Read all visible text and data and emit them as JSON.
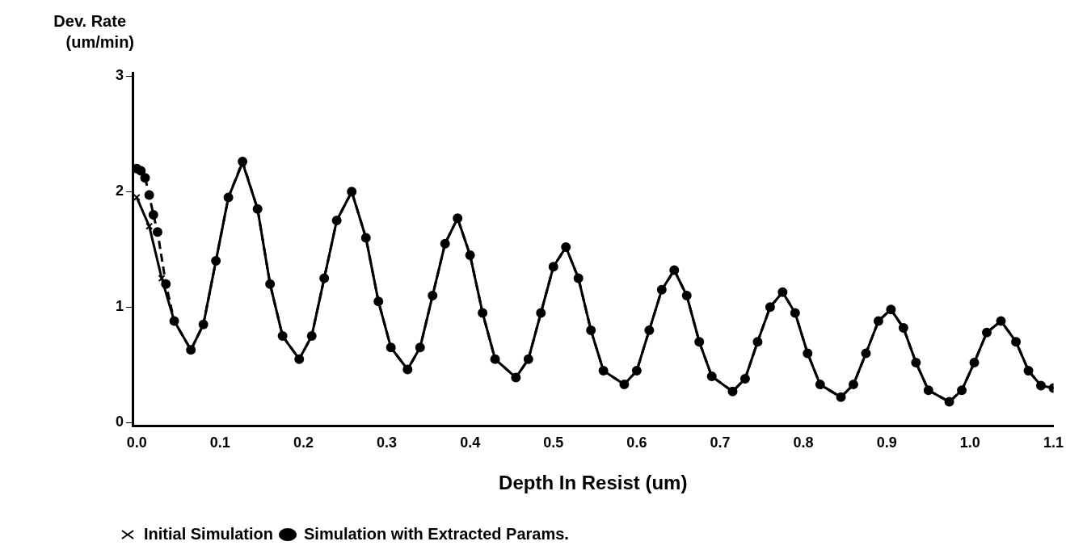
{
  "chart_data": {
    "type": "line",
    "xlabel": "Depth In Resist (um)",
    "ylabel": "Dev. Rate (um/min)",
    "xlim": [
      -0.005,
      1.1
    ],
    "xticks": [
      {
        "value": 0,
        "label": "0.0"
      },
      0.1,
      0.2,
      0.3,
      0.4,
      0.5,
      0.6,
      0.7,
      0.8,
      0.9,
      {
        "value": 1,
        "label": "1.0"
      },
      1.1
    ],
    "ylim": [
      -0.03,
      3.03
    ],
    "yticks": [
      0,
      1,
      2,
      3
    ],
    "grid": false,
    "legend": "bottom",
    "series": [
      {
        "name": "Initial Simulation",
        "color": "#000000",
        "marker": "cross",
        "line_style": "solid",
        "x": [
          0,
          0.015,
          0.03,
          0.045,
          0.065,
          0.08,
          0.095,
          0.11,
          0.127,
          0.145,
          0.16,
          0.175,
          0.195,
          0.21,
          0.225,
          0.24,
          0.258,
          0.275,
          0.29,
          0.305,
          0.325,
          0.34,
          0.355,
          0.37,
          0.385,
          0.4,
          0.415,
          0.43,
          0.455,
          0.47,
          0.485,
          0.5,
          0.515,
          0.53,
          0.545,
          0.56,
          0.585,
          0.6,
          0.615,
          0.63,
          0.645,
          0.66,
          0.675,
          0.69,
          0.715,
          0.73,
          0.745,
          0.76,
          0.775,
          0.79,
          0.805,
          0.82,
          0.845,
          0.86,
          0.875,
          0.89,
          0.905,
          0.92,
          0.935,
          0.95,
          0.975,
          0.99,
          1.005,
          1.02,
          1.037,
          1.055,
          1.07,
          1.085,
          1.1
        ],
        "values": [
          1.95,
          1.7,
          1.25,
          0.88,
          0.63,
          0.85,
          1.4,
          1.95,
          2.25,
          1.85,
          1.2,
          0.75,
          0.55,
          0.75,
          1.25,
          1.75,
          2.0,
          1.6,
          1.05,
          0.65,
          0.46,
          0.65,
          1.1,
          1.55,
          1.77,
          1.45,
          0.95,
          0.55,
          0.39,
          0.55,
          0.95,
          1.35,
          1.52,
          1.25,
          0.8,
          0.45,
          0.33,
          0.45,
          0.8,
          1.15,
          1.32,
          1.1,
          0.7,
          0.4,
          0.27,
          0.38,
          0.7,
          1.0,
          1.13,
          0.95,
          0.6,
          0.33,
          0.22,
          0.33,
          0.6,
          0.88,
          0.98,
          0.82,
          0.52,
          0.28,
          0.18,
          0.28,
          0.52,
          0.78,
          0.88,
          0.7,
          0.45,
          0.32,
          0.3
        ]
      },
      {
        "name": "Simulation with Extracted Params.",
        "color": "#000000",
        "marker": "circle",
        "line_style": "dashed",
        "x": [
          0,
          0.005,
          0.01,
          0.015,
          0.02,
          0.025,
          0.035,
          0.045,
          0.065,
          0.08,
          0.095,
          0.11,
          0.127,
          0.145,
          0.16,
          0.175,
          0.195,
          0.21,
          0.225,
          0.24,
          0.258,
          0.275,
          0.29,
          0.305,
          0.325,
          0.34,
          0.355,
          0.37,
          0.385,
          0.4,
          0.415,
          0.43,
          0.455,
          0.47,
          0.485,
          0.5,
          0.515,
          0.53,
          0.545,
          0.56,
          0.585,
          0.6,
          0.615,
          0.63,
          0.645,
          0.66,
          0.675,
          0.69,
          0.715,
          0.73,
          0.745,
          0.76,
          0.775,
          0.79,
          0.805,
          0.82,
          0.845,
          0.86,
          0.875,
          0.89,
          0.905,
          0.92,
          0.935,
          0.95,
          0.975,
          0.99,
          1.005,
          1.02,
          1.037,
          1.055,
          1.07,
          1.085,
          1.1
        ],
        "values": [
          2.2,
          2.18,
          2.12,
          1.97,
          1.8,
          1.65,
          1.2,
          0.88,
          0.63,
          0.85,
          1.4,
          1.95,
          2.26,
          1.85,
          1.2,
          0.75,
          0.55,
          0.75,
          1.25,
          1.75,
          2.0,
          1.6,
          1.05,
          0.65,
          0.46,
          0.65,
          1.1,
          1.55,
          1.77,
          1.45,
          0.95,
          0.55,
          0.39,
          0.55,
          0.95,
          1.35,
          1.52,
          1.25,
          0.8,
          0.45,
          0.33,
          0.45,
          0.8,
          1.15,
          1.32,
          1.1,
          0.7,
          0.4,
          0.27,
          0.38,
          0.7,
          1.0,
          1.13,
          0.95,
          0.6,
          0.33,
          0.22,
          0.33,
          0.6,
          0.88,
          0.98,
          0.82,
          0.52,
          0.28,
          0.18,
          0.28,
          0.52,
          0.78,
          0.88,
          0.7,
          0.45,
          0.32,
          0.3
        ]
      }
    ]
  }
}
